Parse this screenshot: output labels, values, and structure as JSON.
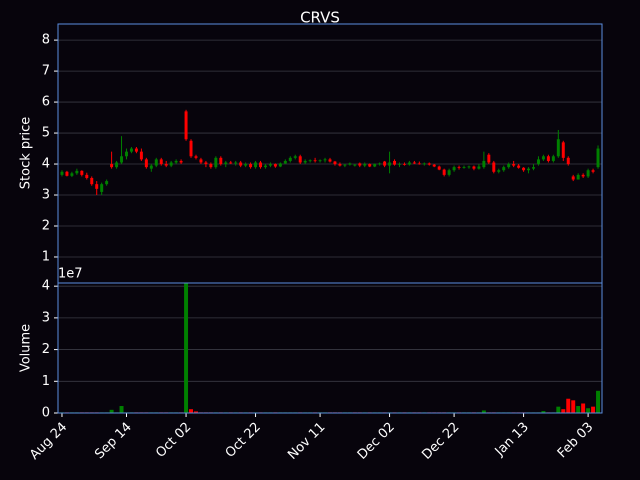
{
  "chart_data": [
    {
      "type": "candlestick",
      "title": "CRVS",
      "ylabel": "Stock price",
      "categories": [
        "Aug 24",
        null,
        null,
        null,
        null,
        null,
        null,
        null,
        null,
        null,
        null,
        null,
        null,
        "Sep 14",
        null,
        null,
        null,
        null,
        null,
        null,
        null,
        null,
        null,
        null,
        null,
        "Oct 02",
        null,
        null,
        null,
        null,
        null,
        null,
        null,
        null,
        null,
        null,
        null,
        null,
        null,
        "Oct 22",
        null,
        null,
        null,
        null,
        null,
        null,
        null,
        null,
        null,
        null,
        null,
        null,
        "Nov 11",
        null,
        null,
        null,
        null,
        null,
        null,
        null,
        null,
        null,
        null,
        null,
        null,
        null,
        "Dec 02",
        null,
        null,
        null,
        null,
        null,
        null,
        null,
        null,
        null,
        null,
        null,
        null,
        "Dec 22",
        null,
        null,
        null,
        null,
        null,
        null,
        null,
        null,
        null,
        null,
        null,
        null,
        null,
        "Jan 13",
        null,
        null,
        null,
        null,
        null,
        null,
        null,
        null,
        null,
        null,
        null,
        null,
        "Feb 03",
        null,
        null
      ],
      "open": [
        3.65,
        3.75,
        3.62,
        3.7,
        3.78,
        3.65,
        3.55,
        3.35,
        3.1,
        3.35,
        4.0,
        3.9,
        4.05,
        4.25,
        4.4,
        4.5,
        4.4,
        4.15,
        3.85,
        3.95,
        4.15,
        4.0,
        3.95,
        4.05,
        4.1,
        5.7,
        4.75,
        4.25,
        4.15,
        4.05,
        4.0,
        3.9,
        4.2,
        4.0,
        4.05,
        4.02,
        4.05,
        3.95,
        4.0,
        3.9,
        4.05,
        3.9,
        3.95,
        4.0,
        3.92,
        4.02,
        4.1,
        4.2,
        4.25,
        4.05,
        4.1,
        4.12,
        4.1,
        4.12,
        4.15,
        4.08,
        4.0,
        3.95,
        3.98,
        3.95,
        4.02,
        3.95,
        4.0,
        3.92,
        4.0,
        4.08,
        3.95,
        4.1,
        3.98,
        4.0,
        3.98,
        4.05,
        4.02,
        4.0,
        4.02,
        3.98,
        3.92,
        3.82,
        3.65,
        3.8,
        3.9,
        3.88,
        3.9,
        3.92,
        3.85,
        3.9,
        4.3,
        4.05,
        3.75,
        3.8,
        3.9,
        4.0,
        3.95,
        3.88,
        3.8,
        3.85,
        4.0,
        4.15,
        4.25,
        4.1,
        4.25,
        4.7,
        4.2,
        3.6,
        3.5,
        3.65,
        3.6,
        3.8,
        3.9
      ],
      "high": [
        3.8,
        3.78,
        3.75,
        3.85,
        3.8,
        3.72,
        3.6,
        3.45,
        3.4,
        3.5,
        4.4,
        4.1,
        4.9,
        4.5,
        4.55,
        4.55,
        4.5,
        4.2,
        4.0,
        4.2,
        4.2,
        4.1,
        4.1,
        4.15,
        4.15,
        5.75,
        4.8,
        4.3,
        4.2,
        4.1,
        4.05,
        4.25,
        4.25,
        4.1,
        4.1,
        4.1,
        4.1,
        4.05,
        4.05,
        4.1,
        4.1,
        4.0,
        4.05,
        4.02,
        4.05,
        4.15,
        4.25,
        4.3,
        4.3,
        4.15,
        4.15,
        4.2,
        4.15,
        4.2,
        4.2,
        4.1,
        4.05,
        4.0,
        4.05,
        4.0,
        4.05,
        4.05,
        4.02,
        4.02,
        4.05,
        4.1,
        4.4,
        4.15,
        4.05,
        4.05,
        4.1,
        4.1,
        4.08,
        4.05,
        4.05,
        4.0,
        3.95,
        3.85,
        3.85,
        3.95,
        3.95,
        3.95,
        3.95,
        3.95,
        4.0,
        4.4,
        4.35,
        4.1,
        3.85,
        3.95,
        4.05,
        4.1,
        4.0,
        3.9,
        3.9,
        4.0,
        4.25,
        4.3,
        4.3,
        4.3,
        5.1,
        4.75,
        4.25,
        3.65,
        3.7,
        3.7,
        3.85,
        3.85,
        4.6
      ],
      "low": [
        3.6,
        3.6,
        3.58,
        3.65,
        3.6,
        3.5,
        3.3,
        3.0,
        3.0,
        3.3,
        3.85,
        3.85,
        4.0,
        4.15,
        4.35,
        4.35,
        4.1,
        3.85,
        3.75,
        3.9,
        3.95,
        3.9,
        3.9,
        4.0,
        4.0,
        4.75,
        4.2,
        4.15,
        4.0,
        3.9,
        3.85,
        3.85,
        3.95,
        3.9,
        4.0,
        3.95,
        3.9,
        3.9,
        3.85,
        3.85,
        3.85,
        3.85,
        3.9,
        3.88,
        3.9,
        4.0,
        4.05,
        4.15,
        4.0,
        4.0,
        4.05,
        4.05,
        4.05,
        4.05,
        4.05,
        3.95,
        3.92,
        3.9,
        3.95,
        3.92,
        3.9,
        3.9,
        3.9,
        3.9,
        3.95,
        3.9,
        3.7,
        3.95,
        3.9,
        3.95,
        3.95,
        4.0,
        3.98,
        3.95,
        3.95,
        3.9,
        3.8,
        3.6,
        3.6,
        3.75,
        3.82,
        3.85,
        3.85,
        3.8,
        3.82,
        3.85,
        4.0,
        3.7,
        3.7,
        3.75,
        3.85,
        3.9,
        3.85,
        3.75,
        3.7,
        3.8,
        3.95,
        4.1,
        4.05,
        4.05,
        4.2,
        4.1,
        3.95,
        3.45,
        3.5,
        3.55,
        3.55,
        3.7,
        3.85
      ],
      "close": [
        3.75,
        3.62,
        3.7,
        3.78,
        3.65,
        3.55,
        3.35,
        3.2,
        3.35,
        3.45,
        3.9,
        4.05,
        4.25,
        4.4,
        4.5,
        4.4,
        4.15,
        3.9,
        3.95,
        4.15,
        4.0,
        3.95,
        4.05,
        4.1,
        4.05,
        4.8,
        4.25,
        4.2,
        4.05,
        4.0,
        3.9,
        4.2,
        4.0,
        4.05,
        4.02,
        4.05,
        3.95,
        4.0,
        3.9,
        4.05,
        3.9,
        3.95,
        4.0,
        3.92,
        4.02,
        4.1,
        4.2,
        4.25,
        4.05,
        4.1,
        4.12,
        4.1,
        4.12,
        4.15,
        4.08,
        4.0,
        3.95,
        3.98,
        4.02,
        3.98,
        3.95,
        4.0,
        3.92,
        4.0,
        4.02,
        3.95,
        4.05,
        3.98,
        4.0,
        3.98,
        4.05,
        4.02,
        4.0,
        4.02,
        3.98,
        3.92,
        3.82,
        3.65,
        3.8,
        3.9,
        3.88,
        3.9,
        3.92,
        3.85,
        3.92,
        4.1,
        4.05,
        3.75,
        3.8,
        3.9,
        4.0,
        3.95,
        3.88,
        3.8,
        3.85,
        3.9,
        4.15,
        4.25,
        4.1,
        4.25,
        4.8,
        4.2,
        4.0,
        3.5,
        3.65,
        3.6,
        3.8,
        3.75,
        4.5
      ],
      "up_color": "#008000",
      "down_color": "#ff0000",
      "ylim": [
        0.16,
        8.52
      ],
      "yticks": [
        1,
        2,
        3,
        4,
        5,
        6,
        7,
        8
      ],
      "grid": true
    },
    {
      "type": "bar",
      "ylabel": "Volume",
      "offset_label": "1e7",
      "values": [
        0.02,
        0.02,
        0.02,
        0.02,
        0.02,
        0.02,
        0.02,
        0.02,
        0.02,
        0.02,
        0.1,
        0.02,
        0.22,
        0.02,
        0.02,
        0.02,
        0.02,
        0.02,
        0.02,
        0.02,
        0.02,
        0.02,
        0.02,
        0.02,
        0.02,
        4.1,
        0.12,
        0.05,
        0.02,
        0.02,
        0.02,
        0.02,
        0.02,
        0.02,
        0.02,
        0.02,
        0.02,
        0.02,
        0.02,
        0.02,
        0.02,
        0.02,
        0.02,
        0.02,
        0.02,
        0.02,
        0.02,
        0.02,
        0.02,
        0.02,
        0.02,
        0.02,
        0.02,
        0.02,
        0.02,
        0.02,
        0.02,
        0.02,
        0.02,
        0.02,
        0.02,
        0.02,
        0.02,
        0.02,
        0.02,
        0.02,
        0.02,
        0.02,
        0.02,
        0.02,
        0.02,
        0.02,
        0.02,
        0.02,
        0.02,
        0.02,
        0.02,
        0.02,
        0.02,
        0.02,
        0.02,
        0.02,
        0.02,
        0.02,
        0.02,
        0.08,
        0.02,
        0.02,
        0.02,
        0.02,
        0.02,
        0.02,
        0.02,
        0.02,
        0.02,
        0.02,
        0.02,
        0.06,
        0.02,
        0.02,
        0.2,
        0.12,
        0.45,
        0.4,
        0.22,
        0.3,
        0.15,
        0.2,
        0.7
      ],
      "ylim": [
        0,
        4.1
      ],
      "yticks": [
        0,
        1,
        2,
        3,
        4
      ],
      "grid": true
    }
  ]
}
